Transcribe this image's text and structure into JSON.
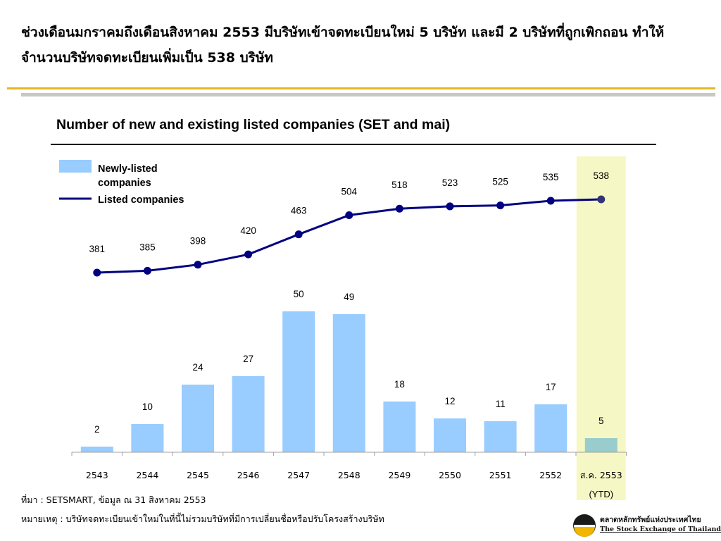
{
  "slide": {
    "title": "ช่วงเดือนมกราคมถึงเดือนสิงหาคม 2553 มีบริษัทเข้าจดทะเบียนใหม่ 5 บริษัท และมี 2 บริษัทที่ถูกเพิกถอน ทำให้จำนวนบริษัทจดทะเบียนเพิ่มเป็น 538 บริษัท",
    "source": "ที่มา : SETSMART, ข้อมูล ณ 31 สิงหาคม 2553",
    "note": "หมายเหตุ : บริษัทจดทะเบียนเข้าใหม่ในที่นี้ไม่รวมบริษัทที่มีการเปลี่ยนชื่อหรือปรับโครงสร้างบริษัท"
  },
  "logo": {
    "thai_name": "ตลาดหลักทรัพย์แห่งประเทศไทย",
    "english_name": "The Stock Exchange of Thailand"
  },
  "colors": {
    "bar": "#99ccff",
    "bar_highlight": "#99cccc",
    "line": "#000080",
    "highlight_band": "#f5f8c4"
  },
  "chart_data": {
    "type": "bar",
    "title": "Number of new and existing listed companies (SET and mai)",
    "categories": [
      "2543",
      "2544",
      "2545",
      "2546",
      "2547",
      "2548",
      "2549",
      "2550",
      "2551",
      "2552",
      "ส.ค. 2553"
    ],
    "category_suffix_last": "(YTD)",
    "highlight_category": "ส.ค. 2553",
    "series": [
      {
        "name": "Newly-listed companies",
        "type": "bar",
        "values": [
          2,
          10,
          24,
          27,
          50,
          49,
          18,
          12,
          11,
          17,
          5
        ]
      },
      {
        "name": "Listed companies",
        "type": "line",
        "values": [
          381,
          385,
          398,
          420,
          463,
          504,
          518,
          523,
          525,
          535,
          538
        ]
      }
    ],
    "legend_position": "top-left",
    "grid": false
  }
}
